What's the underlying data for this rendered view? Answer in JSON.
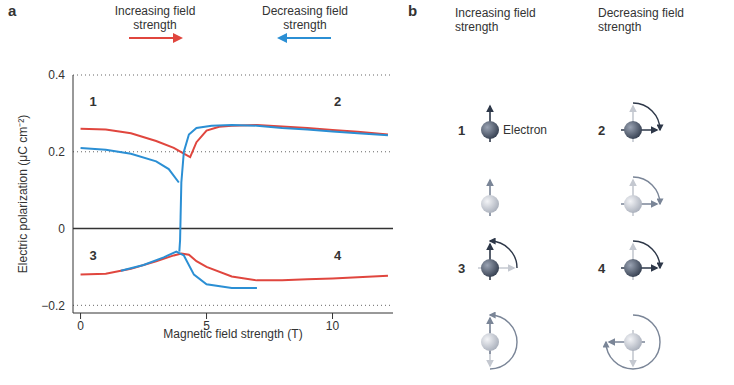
{
  "panel_labels": [
    "a",
    "b"
  ],
  "chart_data": {
    "type": "line",
    "xlabel": "Magnetic field strength (T)",
    "ylabel": "Electric polarization (μC cm⁻²)",
    "xlim": [
      -0.3,
      12.4
    ],
    "xticks": [
      0,
      5,
      10
    ],
    "ylim": [
      -0.22,
      0.4
    ],
    "yticks": [
      {
        "value": -0.2,
        "label": "−0.2"
      },
      0,
      0.2,
      0.4
    ],
    "grid": true,
    "legend": "top",
    "series": [
      {
        "name": "Increasing field strength",
        "color": "#e0463e",
        "x": [
          0,
          1,
          2,
          3,
          3.7,
          4.1,
          4.35,
          4.6,
          5,
          5.5,
          6,
          7,
          8,
          9,
          10,
          11,
          12.2
        ],
        "values": [
          0.26,
          0.258,
          0.248,
          0.228,
          0.21,
          0.195,
          0.186,
          0.225,
          0.255,
          0.265,
          0.268,
          0.27,
          0.266,
          0.262,
          0.257,
          0.252,
          0.245
        ]
      },
      {
        "name": "Decreasing field strength",
        "color": "#2b8fd4",
        "x": [
          12.2,
          11,
          10,
          9,
          8,
          7,
          6,
          5.2,
          4.6,
          4.3,
          4.1,
          4.0,
          3.97,
          3.95,
          3.92
        ],
        "values": [
          0.243,
          0.248,
          0.253,
          0.258,
          0.262,
          0.268,
          0.27,
          0.268,
          0.262,
          0.245,
          0.2,
          0.12,
          0.03,
          -0.03,
          -0.06
        ]
      },
      {
        "name": "Decreasing field strength",
        "color": "#2b8fd4",
        "x": [
          0,
          1,
          2,
          3,
          3.5,
          3.9
        ],
        "values": [
          0.21,
          0.205,
          0.195,
          0.175,
          0.155,
          0.12
        ]
      },
      {
        "name": "Increasing field strength",
        "color": "#e0463e",
        "x": [
          0,
          1,
          2,
          3,
          3.7,
          4,
          4.3,
          4.6,
          5,
          6,
          7,
          8,
          9,
          10,
          11,
          12.2
        ],
        "values": [
          -0.12,
          -0.118,
          -0.105,
          -0.085,
          -0.07,
          -0.065,
          -0.068,
          -0.085,
          -0.1,
          -0.125,
          -0.135,
          -0.135,
          -0.132,
          -0.13,
          -0.127,
          -0.123
        ]
      },
      {
        "name": "Decreasing field strength",
        "color": "#2b8fd4",
        "x": [
          1.6,
          2.5,
          3.3,
          3.8,
          4.1,
          4.5,
          5,
          6,
          7
        ],
        "values": [
          -0.11,
          -0.095,
          -0.075,
          -0.06,
          -0.07,
          -0.12,
          -0.145,
          -0.155,
          -0.155
        ]
      }
    ],
    "annotations": [
      {
        "text": "1",
        "x": 0.5,
        "y": 0.33
      },
      {
        "text": "2",
        "x": 10.2,
        "y": 0.33
      },
      {
        "text": "3",
        "x": 0.5,
        "y": -0.07
      },
      {
        "text": "4",
        "x": 10.2,
        "y": -0.07
      }
    ]
  },
  "diagram": {
    "columns": [
      "Increasing field strength",
      "Decreasing field strength"
    ],
    "states": [
      "1",
      "2",
      "3",
      "4"
    ],
    "electron_label": "Electron"
  }
}
